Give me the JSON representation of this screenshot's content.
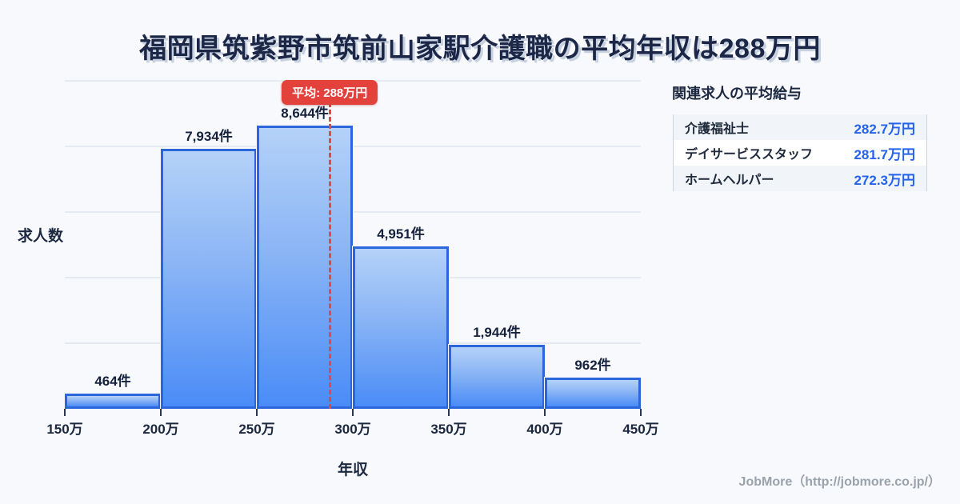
{
  "title": "福岡県筑紫野市筑前山家駅介護職の平均年収は288万円",
  "chart_data": {
    "type": "bar",
    "subtype": "histogram",
    "title": "福岡県筑紫野市筑前山家駅介護職の平均年収は288万円",
    "categories": [
      "150万-200万",
      "200万-250万",
      "250万-300万",
      "300万-350万",
      "350万-400万",
      "400万-450万"
    ],
    "values": [
      464,
      7934,
      8644,
      4951,
      1944,
      962
    ],
    "bar_labels": [
      "464件",
      "7,934件",
      "8,644件",
      "4,951件",
      "1,944件",
      "962件"
    ],
    "x_tick_labels": [
      "150万",
      "200万",
      "250万",
      "300万",
      "350万",
      "400万",
      "450万"
    ],
    "x_range_万円": [
      150,
      450
    ],
    "xlabel": "年収",
    "ylabel": "求人数",
    "ylim": [
      0,
      10000
    ],
    "gridline_values": [
      2000,
      4000,
      6000,
      8000,
      10000
    ],
    "grid": true,
    "legend": "none",
    "average": {
      "value_万円": 288,
      "label": "平均: 288万円"
    },
    "colors": {
      "bar_fill_top": "#b4d2f8",
      "bar_fill_bottom": "#4a8cf7",
      "bar_border": "#2b66dd",
      "average_line": "#e6473f",
      "badge_background": "#e2413c",
      "badge_text": "#ffffff"
    }
  },
  "related_panel": {
    "header": "関連求人の平均給与",
    "rows": [
      {
        "label": "介護福祉士",
        "value": "282.7万円"
      },
      {
        "label": "デイサービススタッフ",
        "value": "281.7万円"
      },
      {
        "label": "ホームヘルパー",
        "value": "272.3万円"
      }
    ],
    "value_color": "#2563eb"
  },
  "footer": {
    "credit": "JobMore（http://jobmore.co.jp/）"
  }
}
